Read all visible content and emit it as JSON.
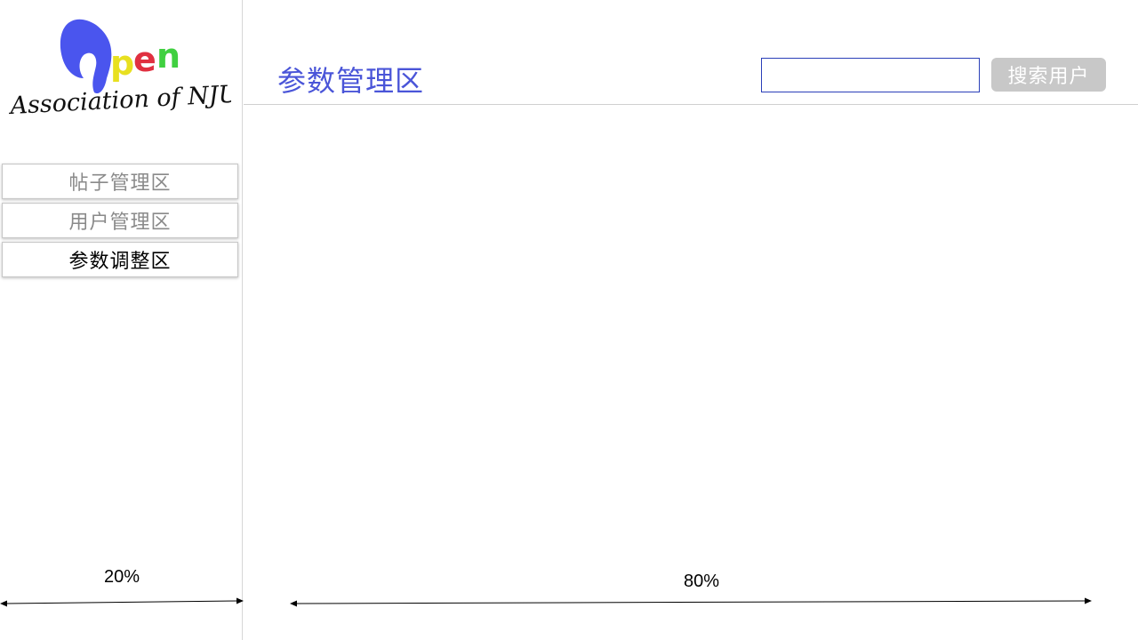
{
  "logo": {
    "letters": [
      "p",
      "e",
      "n"
    ],
    "tagline": "Association of NJU"
  },
  "sidebar": {
    "items": [
      {
        "label": "帖子管理区",
        "active": false
      },
      {
        "label": "用户管理区",
        "active": false
      },
      {
        "label": "参数调整区",
        "active": true
      }
    ]
  },
  "header": {
    "title": "参数管理区",
    "search": {
      "value": "",
      "placeholder": ""
    },
    "search_button_label": "搜索用户"
  },
  "annotations": {
    "sidebar_width": "20%",
    "main_width": "80%"
  },
  "colors": {
    "title": "#4a55d8",
    "search_border": "#2a3fb8",
    "button_bg": "#c8c8c8",
    "logo_blue": "#4a55ee",
    "logo_p": "#e8e020",
    "logo_e": "#e03040",
    "logo_n": "#40d040"
  }
}
